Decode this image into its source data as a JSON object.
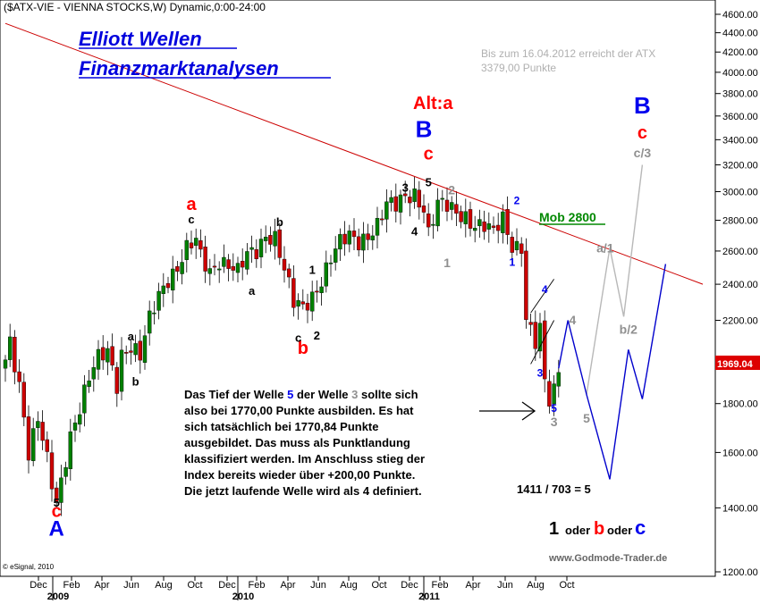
{
  "header": "($ATX-VIE - VIENNA STOCKS,W) Dynamic,0:00-24:00",
  "title_lines": [
    "Elliott Wellen",
    "Finanzmarktanalysen"
  ],
  "note_lines": [
    "Bis zum 16.04.2012 erreicht der ATX",
    "3379,00 Punkte"
  ],
  "alt_label": "Alt:a",
  "mob_label": "Mob 2800",
  "current_price": "1969.04",
  "annotation_lines": [
    "Das Tief der Welle 5 der Welle 3 sollte sich",
    "also bei 1770,00 Punkte ausbilden. Es hat",
    "sich tatsächlich bei 1770,84 Punkte",
    "ausgebildet. Das muss als Punktlandung",
    "klassifiziert werden. Im Anschluss stieg der",
    "Index bereits wieder über +200,00 Punkte.",
    "Die jetzt laufende Welle wird als 4 definiert."
  ],
  "ratio_text": "1411 / 703 = 5",
  "scenario": {
    "one": "1",
    "oder1": "oder",
    "b": "b",
    "oder2": "oder",
    "c": "c"
  },
  "footer": "www.Godmode-Trader.de",
  "copyright": "© eSignal, 2010",
  "colors": {
    "red": "#ff0000",
    "blue": "#0000ee",
    "grey": "#909090",
    "green": "#008800",
    "candle_up": "#008000",
    "candle_down": "#cc0000",
    "trend": "#cc0000",
    "projection": "#0000cc"
  },
  "chart_data": {
    "type": "candlestick",
    "symbol": "$ATX-VIE",
    "ylim": [
      1200,
      4700
    ],
    "y_scale": "log",
    "yticks": [
      1200,
      1400,
      1600,
      1800,
      2000,
      2200,
      2400,
      2600,
      2800,
      3000,
      3200,
      3400,
      3600,
      3800,
      4000,
      4200,
      4400,
      4600
    ],
    "x_ticks": [
      "Dec",
      "Feb",
      "Apr",
      "Jun",
      "Aug",
      "Oct",
      "Dec",
      "Feb",
      "Apr",
      "Jun",
      "Aug",
      "Oct",
      "Dec",
      "Feb",
      "Apr",
      "Jun",
      "Aug",
      "Oct"
    ],
    "x_years": [
      "2009",
      "2010",
      "2011"
    ],
    "weekly_close_keypoints": [
      [
        0,
        2000
      ],
      [
        1,
        2100
      ],
      [
        3,
        1900
      ],
      [
        5,
        1600
      ],
      [
        7,
        1720
      ],
      [
        9,
        1560
      ],
      [
        10,
        1480
      ],
      [
        11,
        1420
      ],
      [
        12,
        1500
      ],
      [
        14,
        1680
      ],
      [
        16,
        1780
      ],
      [
        18,
        1900
      ],
      [
        20,
        2000
      ],
      [
        22,
        2050
      ],
      [
        24,
        1900
      ],
      [
        25,
        2040
      ],
      [
        27,
        2060
      ],
      [
        29,
        2000
      ],
      [
        31,
        2200
      ],
      [
        33,
        2350
      ],
      [
        35,
        2450
      ],
      [
        37,
        2500
      ],
      [
        39,
        2600
      ],
      [
        41,
        2650
      ],
      [
        42,
        2560
      ],
      [
        44,
        2480
      ],
      [
        46,
        2560
      ],
      [
        48,
        2520
      ],
      [
        50,
        2460
      ],
      [
        52,
        2560
      ],
      [
        54,
        2600
      ],
      [
        56,
        2720
      ],
      [
        58,
        2700
      ],
      [
        60,
        2480
      ],
      [
        62,
        2280
      ],
      [
        64,
        2260
      ],
      [
        66,
        2340
      ],
      [
        68,
        2440
      ],
      [
        70,
        2560
      ],
      [
        72,
        2640
      ],
      [
        74,
        2680
      ],
      [
        76,
        2660
      ],
      [
        78,
        2720
      ],
      [
        80,
        2780
      ],
      [
        82,
        2900
      ],
      [
        84,
        2880
      ],
      [
        86,
        2960
      ],
      [
        88,
        3000
      ],
      [
        90,
        2900
      ],
      [
        91,
        2720
      ],
      [
        93,
        2900
      ],
      [
        95,
        2880
      ],
      [
        97,
        2850
      ],
      [
        99,
        2840
      ],
      [
        101,
        2780
      ],
      [
        103,
        2760
      ],
      [
        105,
        2700
      ],
      [
        107,
        2800
      ],
      [
        109,
        2640
      ],
      [
        111,
        2650
      ],
      [
        112,
        2220
      ],
      [
        114,
        2080
      ],
      [
        115,
        2140
      ],
      [
        116,
        1880
      ],
      [
        117,
        1800
      ],
      [
        118,
        1850
      ],
      [
        119,
        1960
      ]
    ],
    "trendline": [
      [
        0,
        4500
      ],
      [
        150,
        2400
      ]
    ],
    "projection_blue": [
      [
        119,
        1960
      ],
      [
        121,
        2200
      ],
      [
        125,
        1840
      ],
      [
        130,
        1500
      ],
      [
        134,
        2050
      ],
      [
        137,
        1820
      ],
      [
        142,
        2520
      ]
    ],
    "projection_grey": [
      [
        125,
        1840
      ],
      [
        130,
        2620
      ],
      [
        133,
        2220
      ],
      [
        137,
        3200
      ]
    ],
    "wave_labels": [
      {
        "t": "A",
        "i": 11,
        "p": 1310,
        "c": "blue",
        "s": 24
      },
      {
        "t": "c",
        "i": 11,
        "p": 1370,
        "c": "red",
        "s": 20
      },
      {
        "t": "5",
        "i": 11,
        "p": 1405,
        "c": "black",
        "s": 13
      },
      {
        "t": "a",
        "i": 27,
        "p": 2095,
        "c": "black",
        "s": 13
      },
      {
        "t": "b",
        "i": 28,
        "p": 1880,
        "c": "black",
        "s": 13
      },
      {
        "t": "a",
        "i": 40,
        "p": 2870,
        "c": "red",
        "s": 20
      },
      {
        "t": "c",
        "i": 40,
        "p": 2780,
        "c": "black",
        "s": 13
      },
      {
        "t": "a",
        "i": 53,
        "p": 2340,
        "c": "black",
        "s": 13
      },
      {
        "t": "b",
        "i": 59,
        "p": 2760,
        "c": "black",
        "s": 13
      },
      {
        "t": "b",
        "i": 64,
        "p": 2030,
        "c": "red",
        "s": 20
      },
      {
        "t": "c",
        "i": 63,
        "p": 2090,
        "c": "black",
        "s": 13
      },
      {
        "t": "1",
        "i": 66,
        "p": 2460,
        "c": "black",
        "s": 13
      },
      {
        "t": "2",
        "i": 67,
        "p": 2100,
        "c": "black",
        "s": 13
      },
      {
        "t": "3",
        "i": 86,
        "p": 3000,
        "c": "black",
        "s": 13
      },
      {
        "t": "4",
        "i": 88,
        "p": 2700,
        "c": "black",
        "s": 13
      },
      {
        "t": "5",
        "i": 91,
        "p": 3040,
        "c": "black",
        "s": 13
      },
      {
        "t": "c",
        "i": 91,
        "p": 3240,
        "c": "red",
        "s": 20
      },
      {
        "t": "B",
        "i": 90,
        "p": 3420,
        "c": "blue",
        "s": 26
      },
      {
        "t": "2",
        "i": 96,
        "p": 2980,
        "c": "grey",
        "s": 14
      },
      {
        "t": "1",
        "i": 95,
        "p": 2500,
        "c": "grey",
        "s": 14
      },
      {
        "t": "2",
        "i": 110,
        "p": 2910,
        "c": "blue",
        "s": 12
      },
      {
        "t": "1",
        "i": 109,
        "p": 2510,
        "c": "blue",
        "s": 12
      },
      {
        "t": "4",
        "i": 116,
        "p": 2350,
        "c": "blue",
        "s": 12
      },
      {
        "t": "3",
        "i": 115,
        "p": 1920,
        "c": "blue",
        "s": 12
      },
      {
        "t": "4",
        "i": 122,
        "p": 2180,
        "c": "grey",
        "s": 14
      },
      {
        "t": "5",
        "i": 118,
        "p": 1765,
        "c": "blue",
        "s": 12
      },
      {
        "t": "3",
        "i": 118,
        "p": 1705,
        "c": "grey",
        "s": 14
      },
      {
        "t": "5",
        "i": 125,
        "p": 1720,
        "c": "grey",
        "s": 14
      },
      {
        "t": "a/1",
        "i": 129,
        "p": 2590,
        "c": "grey",
        "s": 14
      },
      {
        "t": "b/2",
        "i": 134,
        "p": 2130,
        "c": "grey",
        "s": 14
      },
      {
        "t": "c/3",
        "i": 137,
        "p": 3260,
        "c": "grey",
        "s": 14
      },
      {
        "t": "c",
        "i": 137,
        "p": 3410,
        "c": "red",
        "s": 20
      },
      {
        "t": "B",
        "i": 137,
        "p": 3620,
        "c": "blue",
        "s": 26
      }
    ]
  }
}
